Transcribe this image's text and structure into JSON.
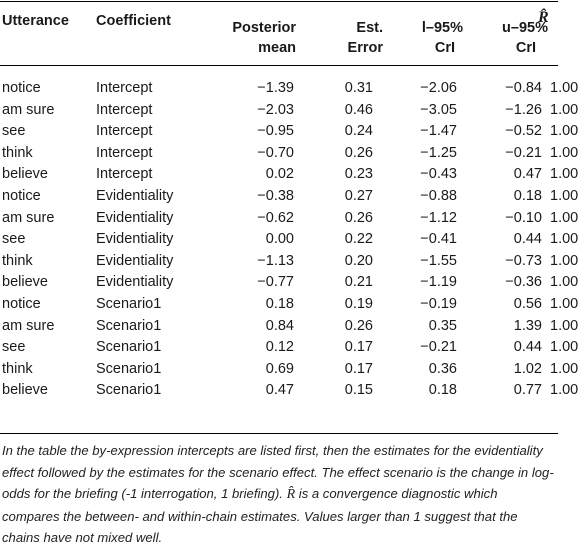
{
  "headers": {
    "utterance": "Utterance",
    "coefficient": "Coefficient",
    "posterior_mean_1": "Posterior",
    "posterior_mean_2": "mean",
    "est_error_1": "Est.",
    "est_error_2": "Error",
    "l95_1": "l–95%",
    "l95_2": "CrI",
    "u95_1": "u–95%",
    "u95_2": "CrI",
    "rhat": "R̂"
  },
  "rows": [
    {
      "utterance": "notice",
      "coefficient": "Intercept",
      "mean": "−1.39",
      "err": "0.31",
      "l95": "−2.06",
      "u95": "−0.84",
      "rhat": "1.00"
    },
    {
      "utterance": "am sure",
      "coefficient": "Intercept",
      "mean": "−2.03",
      "err": "0.46",
      "l95": "−3.05",
      "u95": "−1.26",
      "rhat": "1.00"
    },
    {
      "utterance": "see",
      "coefficient": "Intercept",
      "mean": "−0.95",
      "err": "0.24",
      "l95": "−1.47",
      "u95": "−0.52",
      "rhat": "1.00"
    },
    {
      "utterance": "think",
      "coefficient": "Intercept",
      "mean": "−0.70",
      "err": "0.26",
      "l95": "−1.25",
      "u95": "−0.21",
      "rhat": "1.00"
    },
    {
      "utterance": "believe",
      "coefficient": "Intercept",
      "mean": "0.02",
      "err": "0.23",
      "l95": "−0.43",
      "u95": "0.47",
      "rhat": "1.00"
    },
    {
      "utterance": "notice",
      "coefficient": "Evidentiality",
      "mean": "−0.38",
      "err": "0.27",
      "l95": "−0.88",
      "u95": "0.18",
      "rhat": "1.00"
    },
    {
      "utterance": "am sure",
      "coefficient": "Evidentiality",
      "mean": "−0.62",
      "err": "0.26",
      "l95": "−1.12",
      "u95": "−0.10",
      "rhat": "1.00"
    },
    {
      "utterance": "see",
      "coefficient": "Evidentiality",
      "mean": "0.00",
      "err": "0.22",
      "l95": "−0.41",
      "u95": "0.44",
      "rhat": "1.00"
    },
    {
      "utterance": "think",
      "coefficient": "Evidentiality",
      "mean": "−1.13",
      "err": "0.20",
      "l95": "−1.55",
      "u95": "−0.73",
      "rhat": "1.00"
    },
    {
      "utterance": "believe",
      "coefficient": "Evidentiality",
      "mean": "−0.77",
      "err": "0.21",
      "l95": "−1.19",
      "u95": "−0.36",
      "rhat": "1.00"
    },
    {
      "utterance": "notice",
      "coefficient": "Scenario1",
      "mean": "0.18",
      "err": "0.19",
      "l95": "−0.19",
      "u95": "0.56",
      "rhat": "1.00"
    },
    {
      "utterance": "am sure",
      "coefficient": "Scenario1",
      "mean": "0.84",
      "err": "0.26",
      "l95": "0.35",
      "u95": "1.39",
      "rhat": "1.00"
    },
    {
      "utterance": "see",
      "coefficient": "Scenario1",
      "mean": "0.12",
      "err": "0.17",
      "l95": "−0.21",
      "u95": "0.44",
      "rhat": "1.00"
    },
    {
      "utterance": "think",
      "coefficient": "Scenario1",
      "mean": "0.69",
      "err": "0.17",
      "l95": "0.36",
      "u95": "1.02",
      "rhat": "1.00"
    },
    {
      "utterance": "believe",
      "coefficient": "Scenario1",
      "mean": "0.47",
      "err": "0.15",
      "l95": "0.18",
      "u95": "0.77",
      "rhat": "1.00"
    }
  ],
  "footnote": {
    "part1": "In the table the by-expression intercepts are listed first, then the estimates for the evidentiality effect followed by the estimates for the scenario effect. The effect scenario is the change in log-odds for the briefing (-1 interrogation, 1 briefing). ",
    "rhat_symbol": "R̂",
    "part2": " is a convergence diagnostic which compares the between- and within-chain estimates. Values larger than 1 suggest that the chains have not mixed well."
  }
}
